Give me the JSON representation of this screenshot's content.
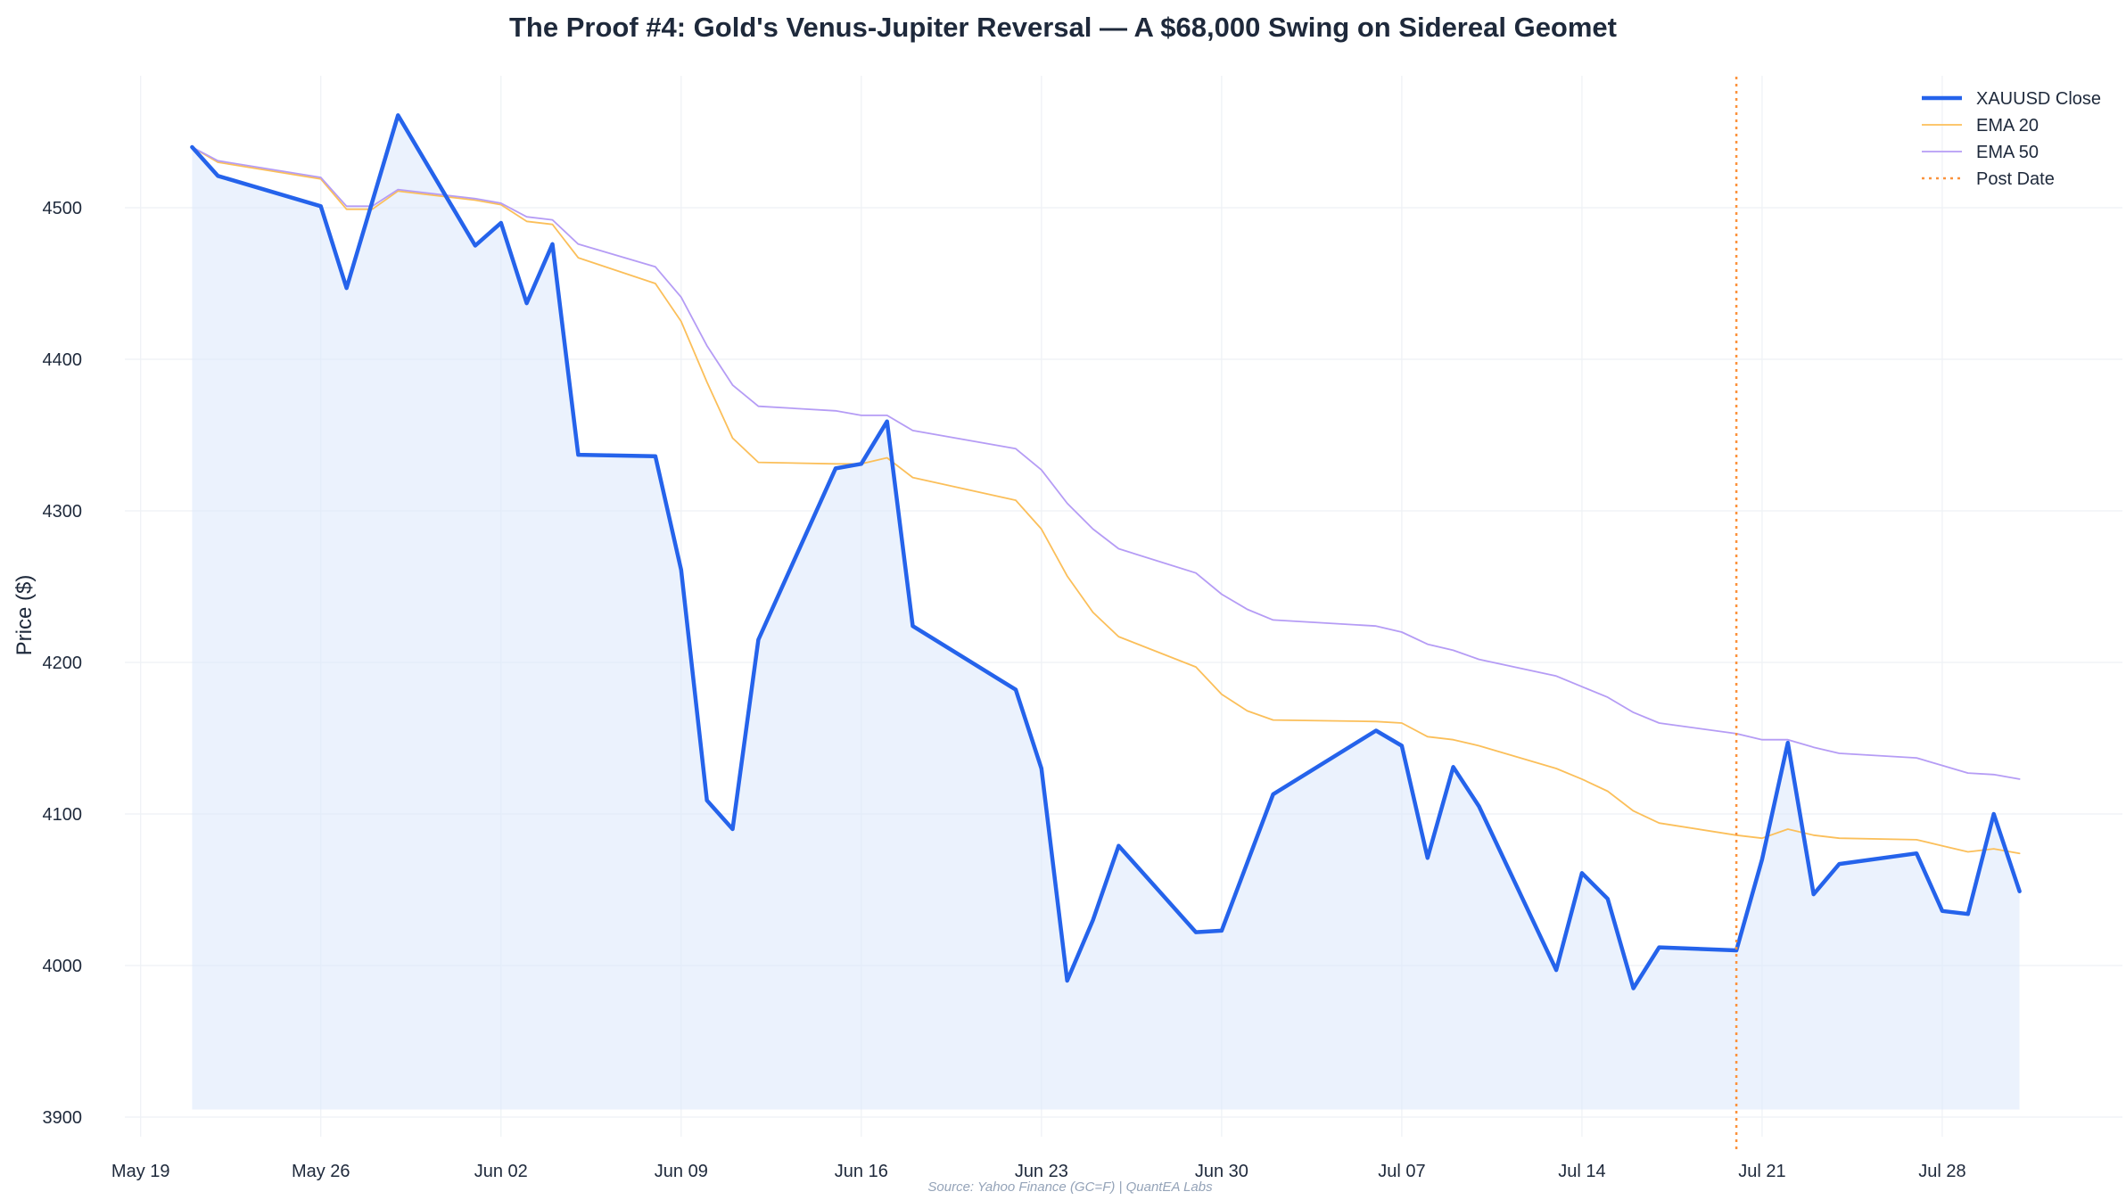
{
  "chart_data": {
    "type": "line",
    "title": "The Proof #4: Gold's Venus-Jupiter Reversal — A $68,000 Swing on Sidereal Geomet",
    "xlabel": "",
    "ylabel": "Price ($)",
    "source": "Source: Yahoo Finance (GC=F) | QuantEA Labs",
    "ylim": [
      3890,
      4590
    ],
    "xlim": [
      "2025-05-17",
      "2025-08-04"
    ],
    "y_ticks": [
      "3900",
      "4000",
      "4100",
      "4200",
      "4300",
      "4400",
      "4500"
    ],
    "x_ticks": [
      {
        "date": "2025-05-19",
        "label": "May 19"
      },
      {
        "date": "2025-05-26",
        "label": "May 26"
      },
      {
        "date": "2025-06-02",
        "label": "Jun 02"
      },
      {
        "date": "2025-06-09",
        "label": "Jun 09"
      },
      {
        "date": "2025-06-16",
        "label": "Jun 16"
      },
      {
        "date": "2025-06-23",
        "label": "Jun 23"
      },
      {
        "date": "2025-06-30",
        "label": "Jun 30"
      },
      {
        "date": "2025-07-07",
        "label": "Jul 07"
      },
      {
        "date": "2025-07-14",
        "label": "Jul 14"
      },
      {
        "date": "2025-07-21",
        "label": "Jul 21"
      },
      {
        "date": "2025-07-28",
        "label": "Jul 28"
      }
    ],
    "grid": true,
    "legend_position": "top-right",
    "post_date": "2025-07-20",
    "series": [
      {
        "name": "XAUUSD Close",
        "color": "#2563eb",
        "points": [
          [
            "2025-05-21",
            4540
          ],
          [
            "2025-05-22",
            4521
          ],
          [
            "2025-05-26",
            4501
          ],
          [
            "2025-05-27",
            4447
          ],
          [
            "2025-05-29",
            4561
          ],
          [
            "2025-06-01",
            4475
          ],
          [
            "2025-06-02",
            4490
          ],
          [
            "2025-06-03",
            4437
          ],
          [
            "2025-06-04",
            4476
          ],
          [
            "2025-06-05",
            4337
          ],
          [
            "2025-06-08",
            4336
          ],
          [
            "2025-06-09",
            4261
          ],
          [
            "2025-06-10",
            4109
          ],
          [
            "2025-06-11",
            4090
          ],
          [
            "2025-06-12",
            4215
          ],
          [
            "2025-06-15",
            4328
          ],
          [
            "2025-06-16",
            4331
          ],
          [
            "2025-06-17",
            4359
          ],
          [
            "2025-06-18",
            4224
          ],
          [
            "2025-06-22",
            4182
          ],
          [
            "2025-06-23",
            4130
          ],
          [
            "2025-06-24",
            3990
          ],
          [
            "2025-06-25",
            4030
          ],
          [
            "2025-06-26",
            4079
          ],
          [
            "2025-06-29",
            4022
          ],
          [
            "2025-06-30",
            4023
          ],
          [
            "2025-07-02",
            4113
          ],
          [
            "2025-07-06",
            4155
          ],
          [
            "2025-07-07",
            4145
          ],
          [
            "2025-07-08",
            4071
          ],
          [
            "2025-07-09",
            4131
          ],
          [
            "2025-07-10",
            4105
          ],
          [
            "2025-07-13",
            3997
          ],
          [
            "2025-07-14",
            4061
          ],
          [
            "2025-07-15",
            4044
          ],
          [
            "2025-07-16",
            3985
          ],
          [
            "2025-07-17",
            4012
          ],
          [
            "2025-07-20",
            4010
          ],
          [
            "2025-07-21",
            4070
          ],
          [
            "2025-07-22",
            4147
          ],
          [
            "2025-07-23",
            4047
          ],
          [
            "2025-07-24",
            4067
          ],
          [
            "2025-07-27",
            4074
          ],
          [
            "2025-07-28",
            4036
          ],
          [
            "2025-07-29",
            4034
          ],
          [
            "2025-07-30",
            4100
          ],
          [
            "2025-07-31",
            4049
          ]
        ]
      },
      {
        "name": "EMA 20",
        "color": "#fbbf5a",
        "points": [
          [
            "2025-05-21",
            4540
          ],
          [
            "2025-05-22",
            4530
          ],
          [
            "2025-05-26",
            4519
          ],
          [
            "2025-05-27",
            4499
          ],
          [
            "2025-05-28",
            4499
          ],
          [
            "2025-05-29",
            4511
          ],
          [
            "2025-06-01",
            4505
          ],
          [
            "2025-06-02",
            4502
          ],
          [
            "2025-06-03",
            4491
          ],
          [
            "2025-06-04",
            4489
          ],
          [
            "2025-06-05",
            4467
          ],
          [
            "2025-06-08",
            4450
          ],
          [
            "2025-06-09",
            4425
          ],
          [
            "2025-06-10",
            4385
          ],
          [
            "2025-06-11",
            4348
          ],
          [
            "2025-06-12",
            4332
          ],
          [
            "2025-06-15",
            4331
          ],
          [
            "2025-06-16",
            4331
          ],
          [
            "2025-06-17",
            4335
          ],
          [
            "2025-06-18",
            4322
          ],
          [
            "2025-06-22",
            4307
          ],
          [
            "2025-06-23",
            4288
          ],
          [
            "2025-06-24",
            4257
          ],
          [
            "2025-06-25",
            4233
          ],
          [
            "2025-06-26",
            4217
          ],
          [
            "2025-06-29",
            4197
          ],
          [
            "2025-06-30",
            4179
          ],
          [
            "2025-07-01",
            4168
          ],
          [
            "2025-07-02",
            4162
          ],
          [
            "2025-07-06",
            4161
          ],
          [
            "2025-07-07",
            4160
          ],
          [
            "2025-07-08",
            4151
          ],
          [
            "2025-07-09",
            4149
          ],
          [
            "2025-07-10",
            4145
          ],
          [
            "2025-07-13",
            4130
          ],
          [
            "2025-07-14",
            4123
          ],
          [
            "2025-07-15",
            4115
          ],
          [
            "2025-07-16",
            4102
          ],
          [
            "2025-07-17",
            4094
          ],
          [
            "2025-07-20",
            4086
          ],
          [
            "2025-07-21",
            4084
          ],
          [
            "2025-07-22",
            4090
          ],
          [
            "2025-07-23",
            4086
          ],
          [
            "2025-07-24",
            4084
          ],
          [
            "2025-07-27",
            4083
          ],
          [
            "2025-07-28",
            4079
          ],
          [
            "2025-07-29",
            4075
          ],
          [
            "2025-07-30",
            4077
          ],
          [
            "2025-07-31",
            4074
          ]
        ]
      },
      {
        "name": "EMA 50",
        "color": "#b59cf5",
        "points": [
          [
            "2025-05-21",
            4540
          ],
          [
            "2025-05-22",
            4531
          ],
          [
            "2025-05-26",
            4520
          ],
          [
            "2025-05-27",
            4501
          ],
          [
            "2025-05-28",
            4501
          ],
          [
            "2025-05-29",
            4512
          ],
          [
            "2025-06-01",
            4506
          ],
          [
            "2025-06-02",
            4503
          ],
          [
            "2025-06-03",
            4494
          ],
          [
            "2025-06-04",
            4492
          ],
          [
            "2025-06-05",
            4476
          ],
          [
            "2025-06-08",
            4461
          ],
          [
            "2025-06-09",
            4441
          ],
          [
            "2025-06-10",
            4409
          ],
          [
            "2025-06-11",
            4383
          ],
          [
            "2025-06-12",
            4369
          ],
          [
            "2025-06-15",
            4366
          ],
          [
            "2025-06-16",
            4363
          ],
          [
            "2025-06-17",
            4363
          ],
          [
            "2025-06-18",
            4353
          ],
          [
            "2025-06-22",
            4341
          ],
          [
            "2025-06-23",
            4327
          ],
          [
            "2025-06-24",
            4305
          ],
          [
            "2025-06-25",
            4288
          ],
          [
            "2025-06-26",
            4275
          ],
          [
            "2025-06-29",
            4259
          ],
          [
            "2025-06-30",
            4245
          ],
          [
            "2025-07-01",
            4235
          ],
          [
            "2025-07-02",
            4228
          ],
          [
            "2025-07-06",
            4224
          ],
          [
            "2025-07-07",
            4220
          ],
          [
            "2025-07-08",
            4212
          ],
          [
            "2025-07-09",
            4208
          ],
          [
            "2025-07-10",
            4202
          ],
          [
            "2025-07-13",
            4191
          ],
          [
            "2025-07-14",
            4184
          ],
          [
            "2025-07-15",
            4177
          ],
          [
            "2025-07-16",
            4167
          ],
          [
            "2025-07-17",
            4160
          ],
          [
            "2025-07-20",
            4153
          ],
          [
            "2025-07-21",
            4149
          ],
          [
            "2025-07-22",
            4149
          ],
          [
            "2025-07-23",
            4144
          ],
          [
            "2025-07-24",
            4140
          ],
          [
            "2025-07-27",
            4137
          ],
          [
            "2025-07-28",
            4132
          ],
          [
            "2025-07-29",
            4127
          ],
          [
            "2025-07-30",
            4126
          ],
          [
            "2025-07-31",
            4123
          ]
        ]
      }
    ],
    "legend": [
      {
        "label": "XAUUSD Close",
        "color": "#2563eb",
        "style": "solid-thick"
      },
      {
        "label": "EMA 20",
        "color": "#fbbf5a",
        "style": "solid"
      },
      {
        "label": "EMA 50",
        "color": "#b59cf5",
        "style": "solid"
      },
      {
        "label": "Post Date",
        "color": "#fb923c",
        "style": "dotted"
      }
    ],
    "fill_color": "#dbe8fc"
  }
}
